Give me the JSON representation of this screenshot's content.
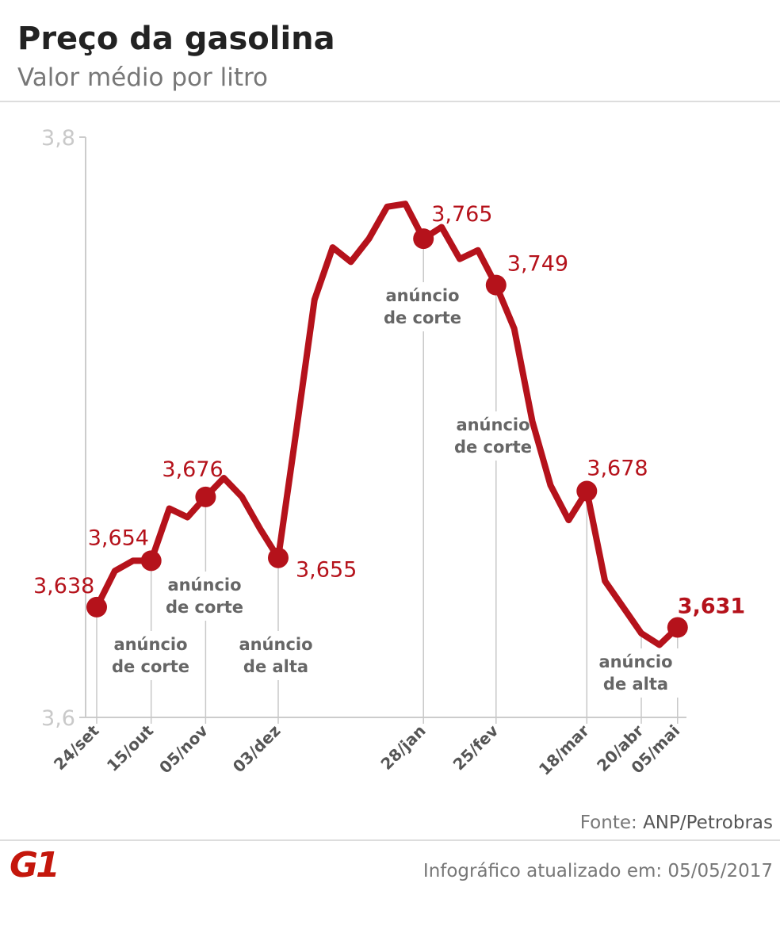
{
  "header": {
    "title": "Preço da gasolina",
    "subtitle": "Valor médio por litro"
  },
  "chart_data": {
    "type": "line",
    "title": "Preço da gasolina",
    "subtitle": "Valor médio por litro",
    "ylim": [
      3.6,
      3.8
    ],
    "yticks": [
      "3,8",
      "3,6"
    ],
    "grid": false,
    "line_color": "#b5121b",
    "values": [
      3.638,
      3.6505,
      3.654,
      3.654,
      3.672,
      3.669,
      3.676,
      3.6825,
      3.676,
      3.665,
      3.655,
      3.699,
      3.744,
      3.762,
      3.757,
      3.765,
      3.776,
      3.777,
      3.765,
      3.769,
      3.758,
      3.761,
      3.749,
      3.734,
      3.702,
      3.68,
      3.668,
      3.678,
      3.647,
      3.638,
      3.629,
      3.625,
      3.631
    ],
    "ticks": [
      {
        "index": 0,
        "label": "24/set"
      },
      {
        "index": 3,
        "label": "15/out"
      },
      {
        "index": 6,
        "label": "05/nov"
      },
      {
        "index": 10,
        "label": "03/dez"
      },
      {
        "index": 18,
        "label": "28/jan"
      },
      {
        "index": 22,
        "label": "25/fev"
      },
      {
        "index": 27,
        "label": "18/mar"
      },
      {
        "index": 30,
        "label": "20/abr"
      },
      {
        "index": 32,
        "label": "05/mai"
      }
    ],
    "markers": [
      {
        "index": 0,
        "label": "3,638"
      },
      {
        "index": 3,
        "label": "3,654"
      },
      {
        "index": 6,
        "label": "3,676"
      },
      {
        "index": 10,
        "label": "3,655"
      },
      {
        "index": 18,
        "label": "3,765"
      },
      {
        "index": 22,
        "label": "3,749"
      },
      {
        "index": 27,
        "label": "3,678"
      },
      {
        "index": 32,
        "label": "3,631",
        "bold": true
      }
    ],
    "annotations": [
      {
        "index": 3,
        "lines": [
          "anúncio",
          "de corte"
        ]
      },
      {
        "index": 6,
        "lines": [
          "anúncio",
          "de corte"
        ]
      },
      {
        "index": 10,
        "lines": [
          "anúncio",
          "de alta"
        ]
      },
      {
        "index": 18,
        "lines": [
          "anúncio",
          "de corte"
        ]
      },
      {
        "index": 22,
        "lines": [
          "anúncio",
          "de corte"
        ]
      },
      {
        "index": 30,
        "lines": [
          "anúncio",
          "de alta"
        ]
      }
    ]
  },
  "footer": {
    "source_prefix": "Fonte: ",
    "source": "ANP/Petrobras",
    "logo": "G1",
    "updated": "Infográfico atualizado em: 05/05/2017"
  }
}
